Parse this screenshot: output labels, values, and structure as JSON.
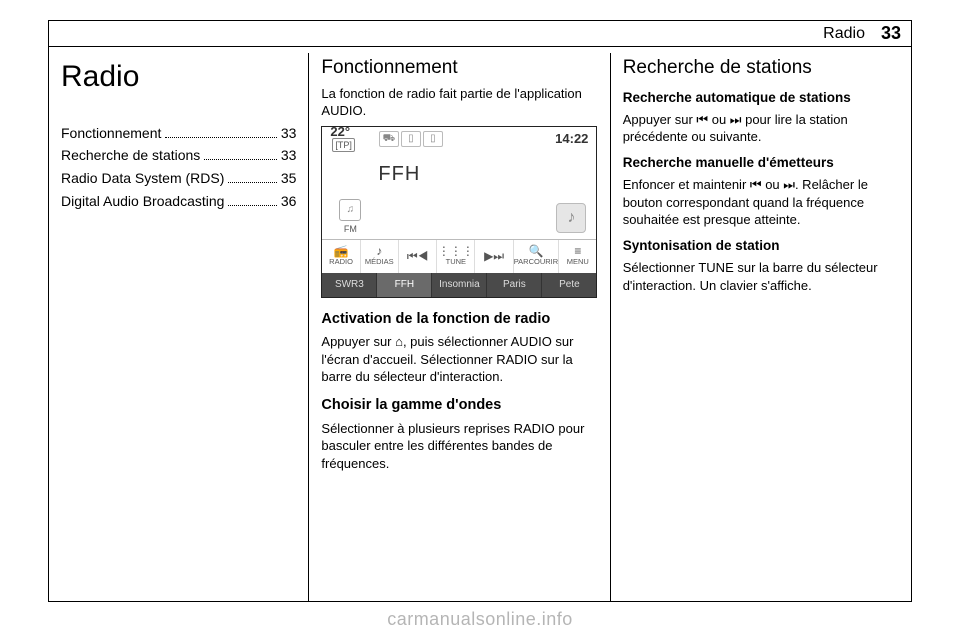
{
  "header": {
    "section": "Radio",
    "page_number": "33"
  },
  "col1": {
    "chapter_title": "Radio",
    "toc": [
      {
        "label": "Fonctionnement",
        "page": "33"
      },
      {
        "label": "Recherche de stations",
        "page": "33"
      },
      {
        "label": "Radio Data System (RDS)",
        "page": "35"
      },
      {
        "label": "Digital Audio Broadcasting",
        "page": "36"
      }
    ]
  },
  "col2": {
    "h1": "Fonctionnement",
    "intro": "La fonction de radio fait partie de l'application AUDIO.",
    "screenshot": {
      "temp": "22°",
      "tp": "[TP]",
      "time": "14:22",
      "station": "FFH",
      "band_label": "FM",
      "iconbar": [
        {
          "icon": "📻",
          "label": "RADIO"
        },
        {
          "icon": "♪",
          "label": "MÉDIAS"
        },
        {
          "icon": "⏮◀",
          "label": ""
        },
        {
          "icon": "⋮⋮⋮",
          "label": "TUNE"
        },
        {
          "icon": "▶⏭",
          "label": ""
        },
        {
          "icon": "🔍",
          "label": "PARCOURIR"
        },
        {
          "icon": "≡",
          "label": "MENU"
        }
      ],
      "presets": [
        {
          "label": "SWR3",
          "active": false
        },
        {
          "label": "FFH",
          "active": true
        },
        {
          "label": "Insomnia",
          "active": false
        },
        {
          "label": "Paris",
          "active": false
        },
        {
          "label": "Pete",
          "active": false
        }
      ],
      "top_icons": [
        "⛟",
        "▯",
        "▯"
      ]
    },
    "h2a": "Activation de la fonction de radio",
    "para_a": "Appuyer sur ⌂, puis sélectionner AUDIO sur l'écran d'accueil. Sélectionner RADIO sur la barre du sélecteur d'interaction.",
    "h2b": "Choisir la gamme d'ondes",
    "para_b": "Sélectionner à plusieurs reprises RADIO pour basculer entre les différentes bandes de fréquences."
  },
  "col3": {
    "h1": "Recherche de stations",
    "h3a": "Recherche automatique de stations",
    "para_a": "Appuyer sur ⏮ ou ⏭ pour lire la station précédente ou suivante.",
    "h3b": "Recherche manuelle d'émetteurs",
    "para_b": "Enfoncer et maintenir ⏮ ou ⏭. Relâcher le bouton correspondant quand la fréquence souhaitée est presque atteinte.",
    "h3c": "Syntonisation de station",
    "para_c": "Sélectionner TUNE sur la barre du sélecteur d'interaction. Un clavier s'affiche."
  },
  "watermark": "carmanualsonline.info"
}
